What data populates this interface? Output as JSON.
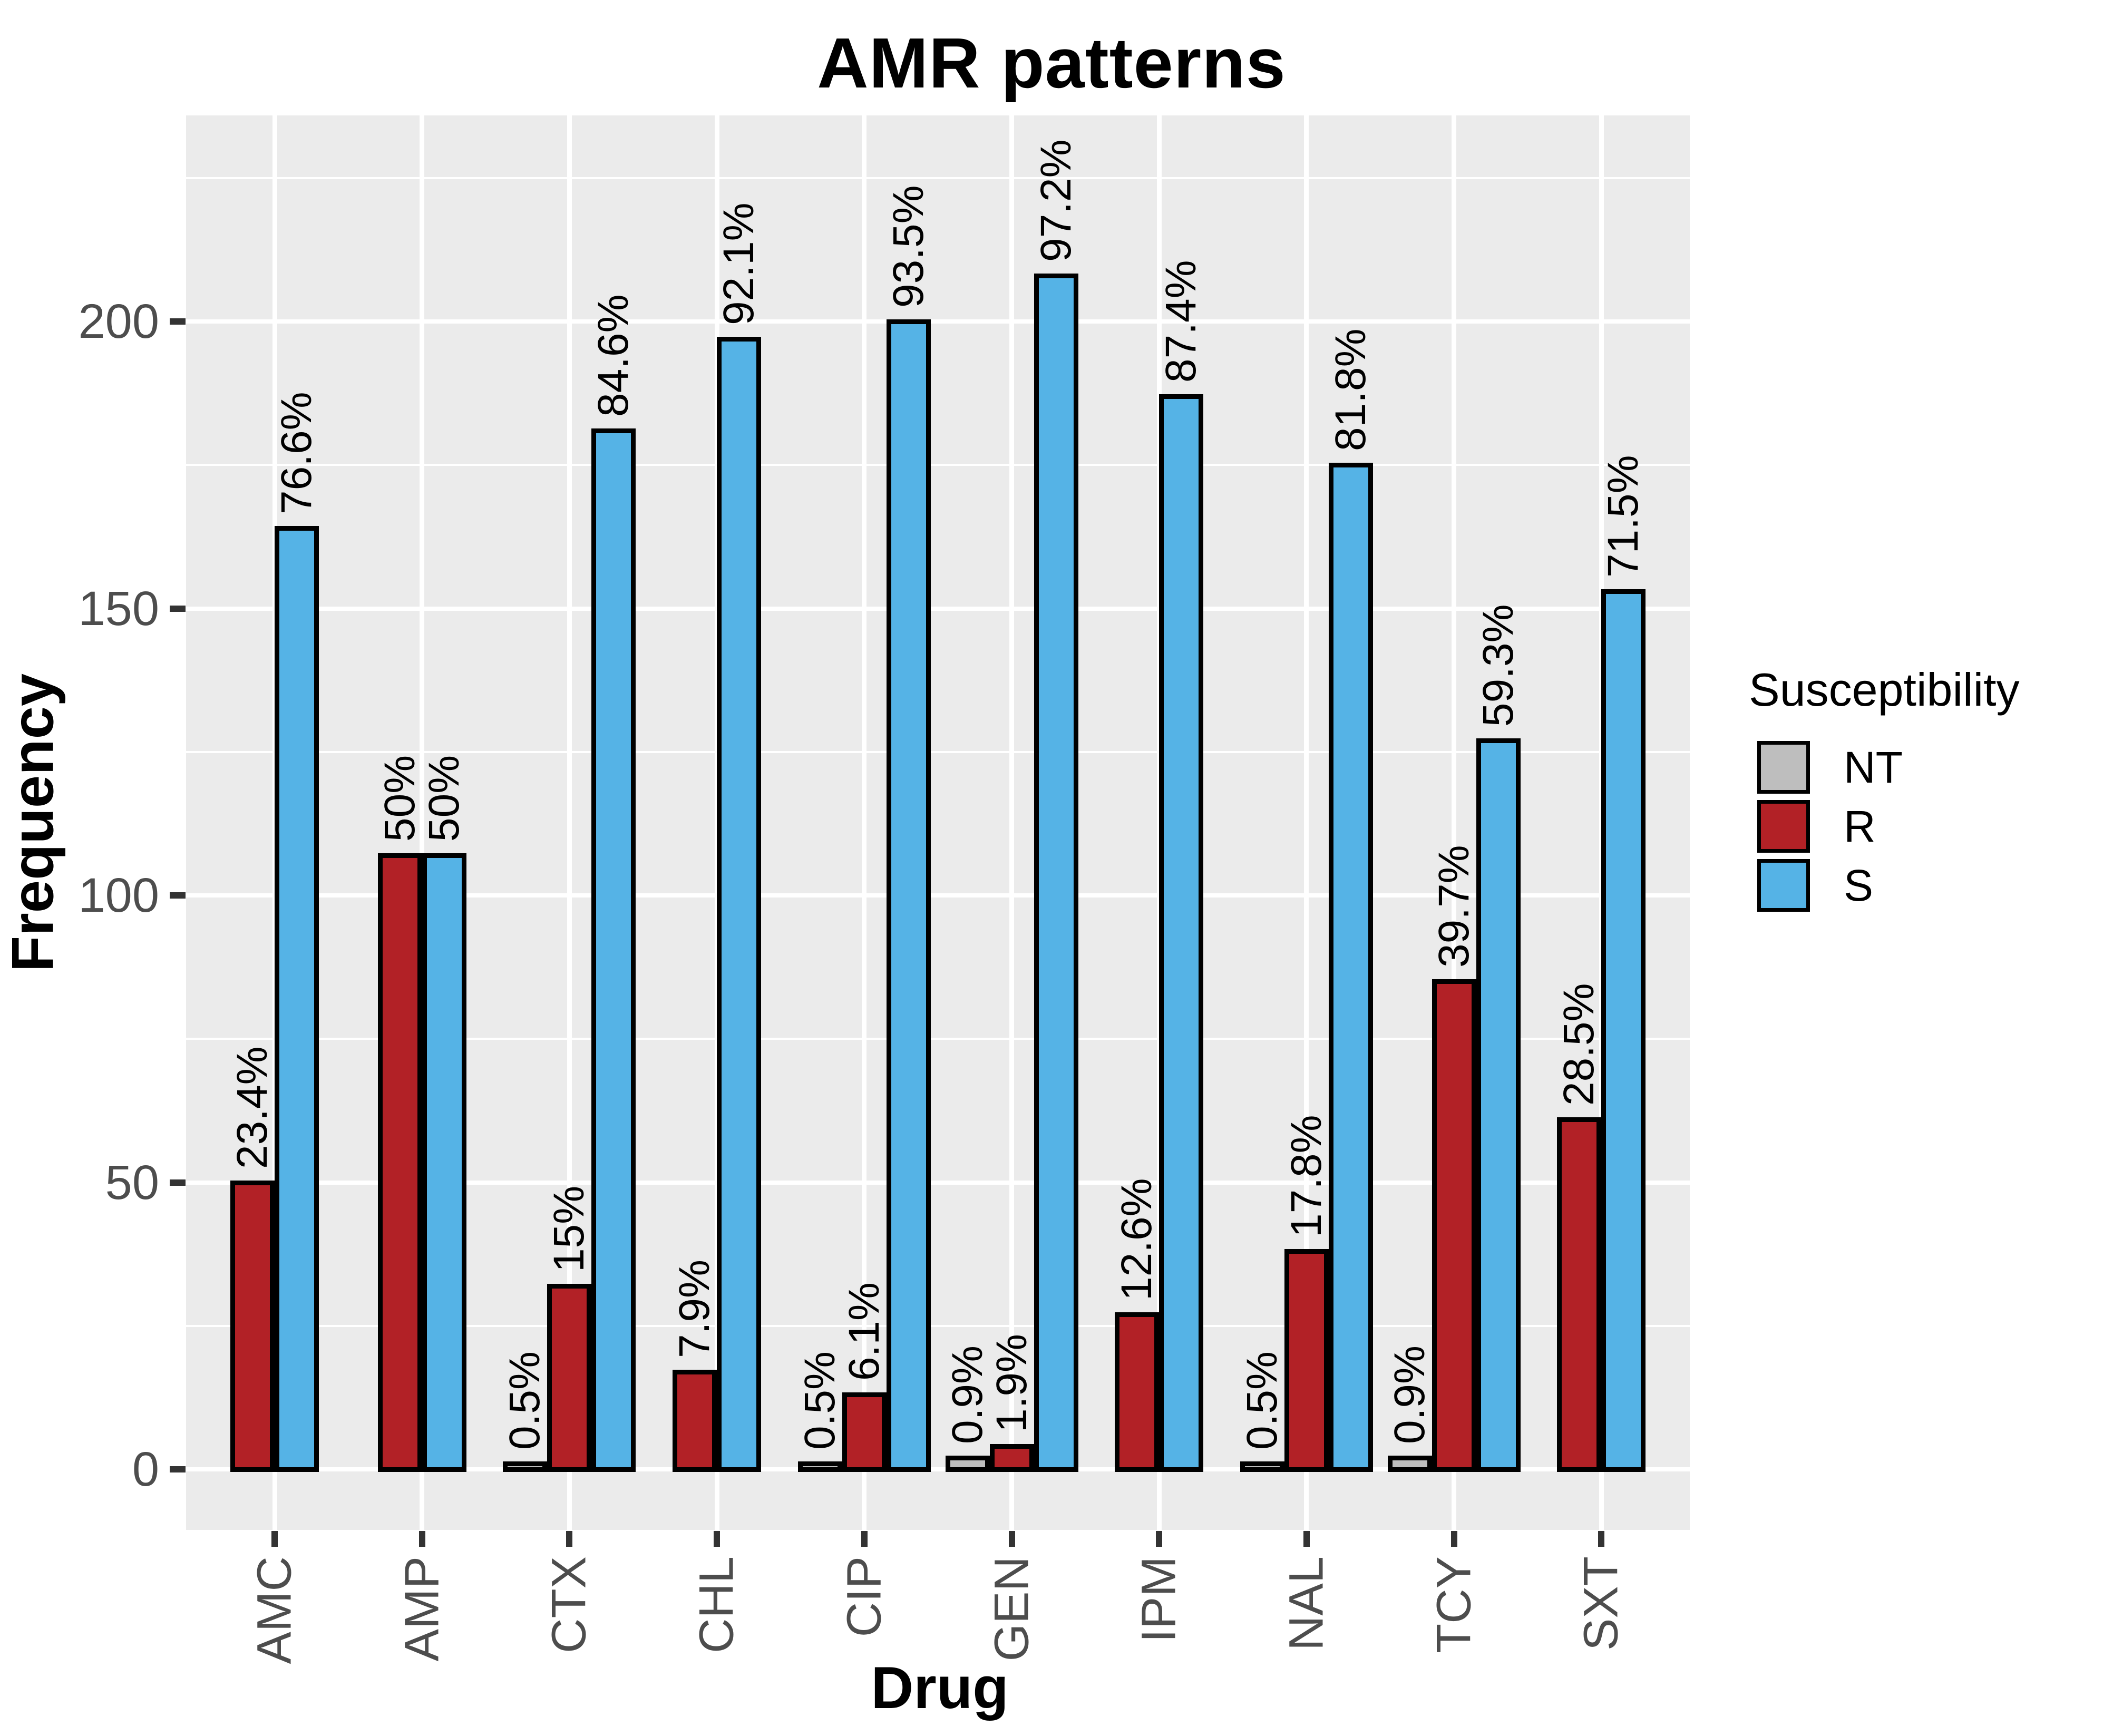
{
  "title": "AMR patterns",
  "y_axis": {
    "label": "Frequency",
    "tick_labels": [
      "0",
      "50",
      "100",
      "150",
      "200"
    ],
    "tick_values": [
      0,
      50,
      100,
      150,
      200
    ],
    "minor_tick_values": [
      25,
      75,
      125,
      175,
      225
    ]
  },
  "x_axis": {
    "label": "Drug"
  },
  "legend": {
    "title": "Susceptibility",
    "position": "right",
    "items": [
      {
        "label": "NT",
        "color": "#BEBEBE"
      },
      {
        "label": "R",
        "color": "#B22126"
      },
      {
        "label": "S",
        "color": "#55B3E6"
      }
    ]
  },
  "colors": {
    "panel_background": "#EBEBEB",
    "gridline": "#FFFFFF",
    "bar_outline": "#000000",
    "tick_text": "#4D4D4D",
    "axis_text": "#000000",
    "nt_fill": "#BEBEBE",
    "r_fill": "#B22126",
    "s_fill": "#55B3E6"
  },
  "chart_data": {
    "type": "bar",
    "title": "AMR patterns",
    "xlabel": "Drug",
    "ylabel": "Frequency",
    "ylim": [
      0,
      235
    ],
    "grid": true,
    "legend_position": "right",
    "categories": [
      "AMC",
      "AMP",
      "CTX",
      "CHL",
      "CIP",
      "GEN",
      "IPM",
      "NAL",
      "TCY",
      "SXT"
    ],
    "series": [
      {
        "name": "NT",
        "color": "#BEBEBE",
        "values": [
          null,
          null,
          1,
          null,
          1,
          2,
          null,
          1,
          2,
          null
        ],
        "labels": [
          null,
          null,
          "0.5%",
          null,
          "0.5%",
          "0.9%",
          null,
          "0.5%",
          "0.9%",
          null
        ]
      },
      {
        "name": "R",
        "color": "#B22126",
        "values": [
          50,
          107,
          32,
          17,
          13,
          4,
          27,
          38,
          85,
          61
        ],
        "labels": [
          "23.4%",
          "50%",
          "15%",
          "7.9%",
          "6.1%",
          "1.9%",
          "12.6%",
          "17.8%",
          "39.7%",
          "28.5%"
        ]
      },
      {
        "name": "S",
        "color": "#55B3E6",
        "values": [
          164,
          107,
          181,
          197,
          200,
          208,
          187,
          175,
          127,
          153
        ],
        "labels": [
          "76.6%",
          "50%",
          "84.6%",
          "92.1%",
          "93.5%",
          "97.2%",
          "87.4%",
          "81.8%",
          "59.3%",
          "71.5%"
        ]
      }
    ]
  }
}
